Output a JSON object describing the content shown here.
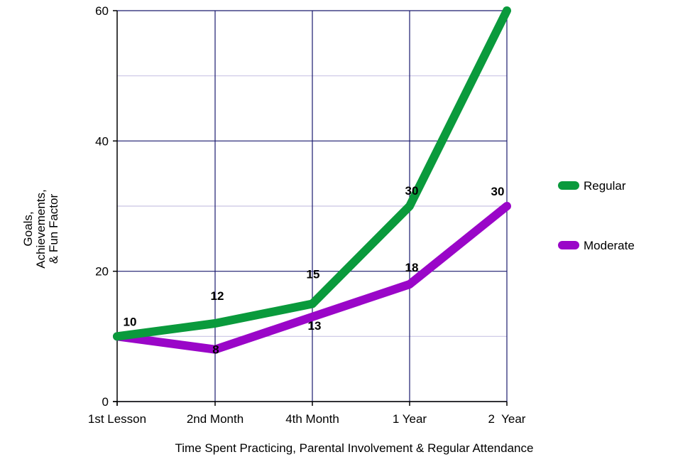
{
  "chart_data": {
    "type": "line",
    "categories": [
      "1st Lesson",
      "2nd Month",
      "4th Month",
      "1 Year",
      "2  Year"
    ],
    "series": [
      {
        "name": "Regular",
        "values": [
          10,
          12,
          15,
          30,
          60
        ],
        "color": "#0a9a3c",
        "labels": [
          "10",
          "12",
          "15",
          "30",
          ""
        ]
      },
      {
        "name": "Moderate",
        "values": [
          10,
          8,
          13,
          18,
          30
        ],
        "color": "#9a06c8",
        "labels": [
          "",
          "8",
          "13",
          "18",
          "30"
        ]
      }
    ],
    "xlabel": "Time Spent Practicing, Parental Involvement & Regular Attendance",
    "ylabel": [
      "Goals,",
      "Achievements,",
      "& Fun Factor"
    ],
    "ylim": [
      0,
      60
    ],
    "yticks": [
      0,
      20,
      40,
      60
    ],
    "minor_gridlines": [
      10,
      30,
      50
    ],
    "grid": true,
    "legend_position": "right"
  }
}
